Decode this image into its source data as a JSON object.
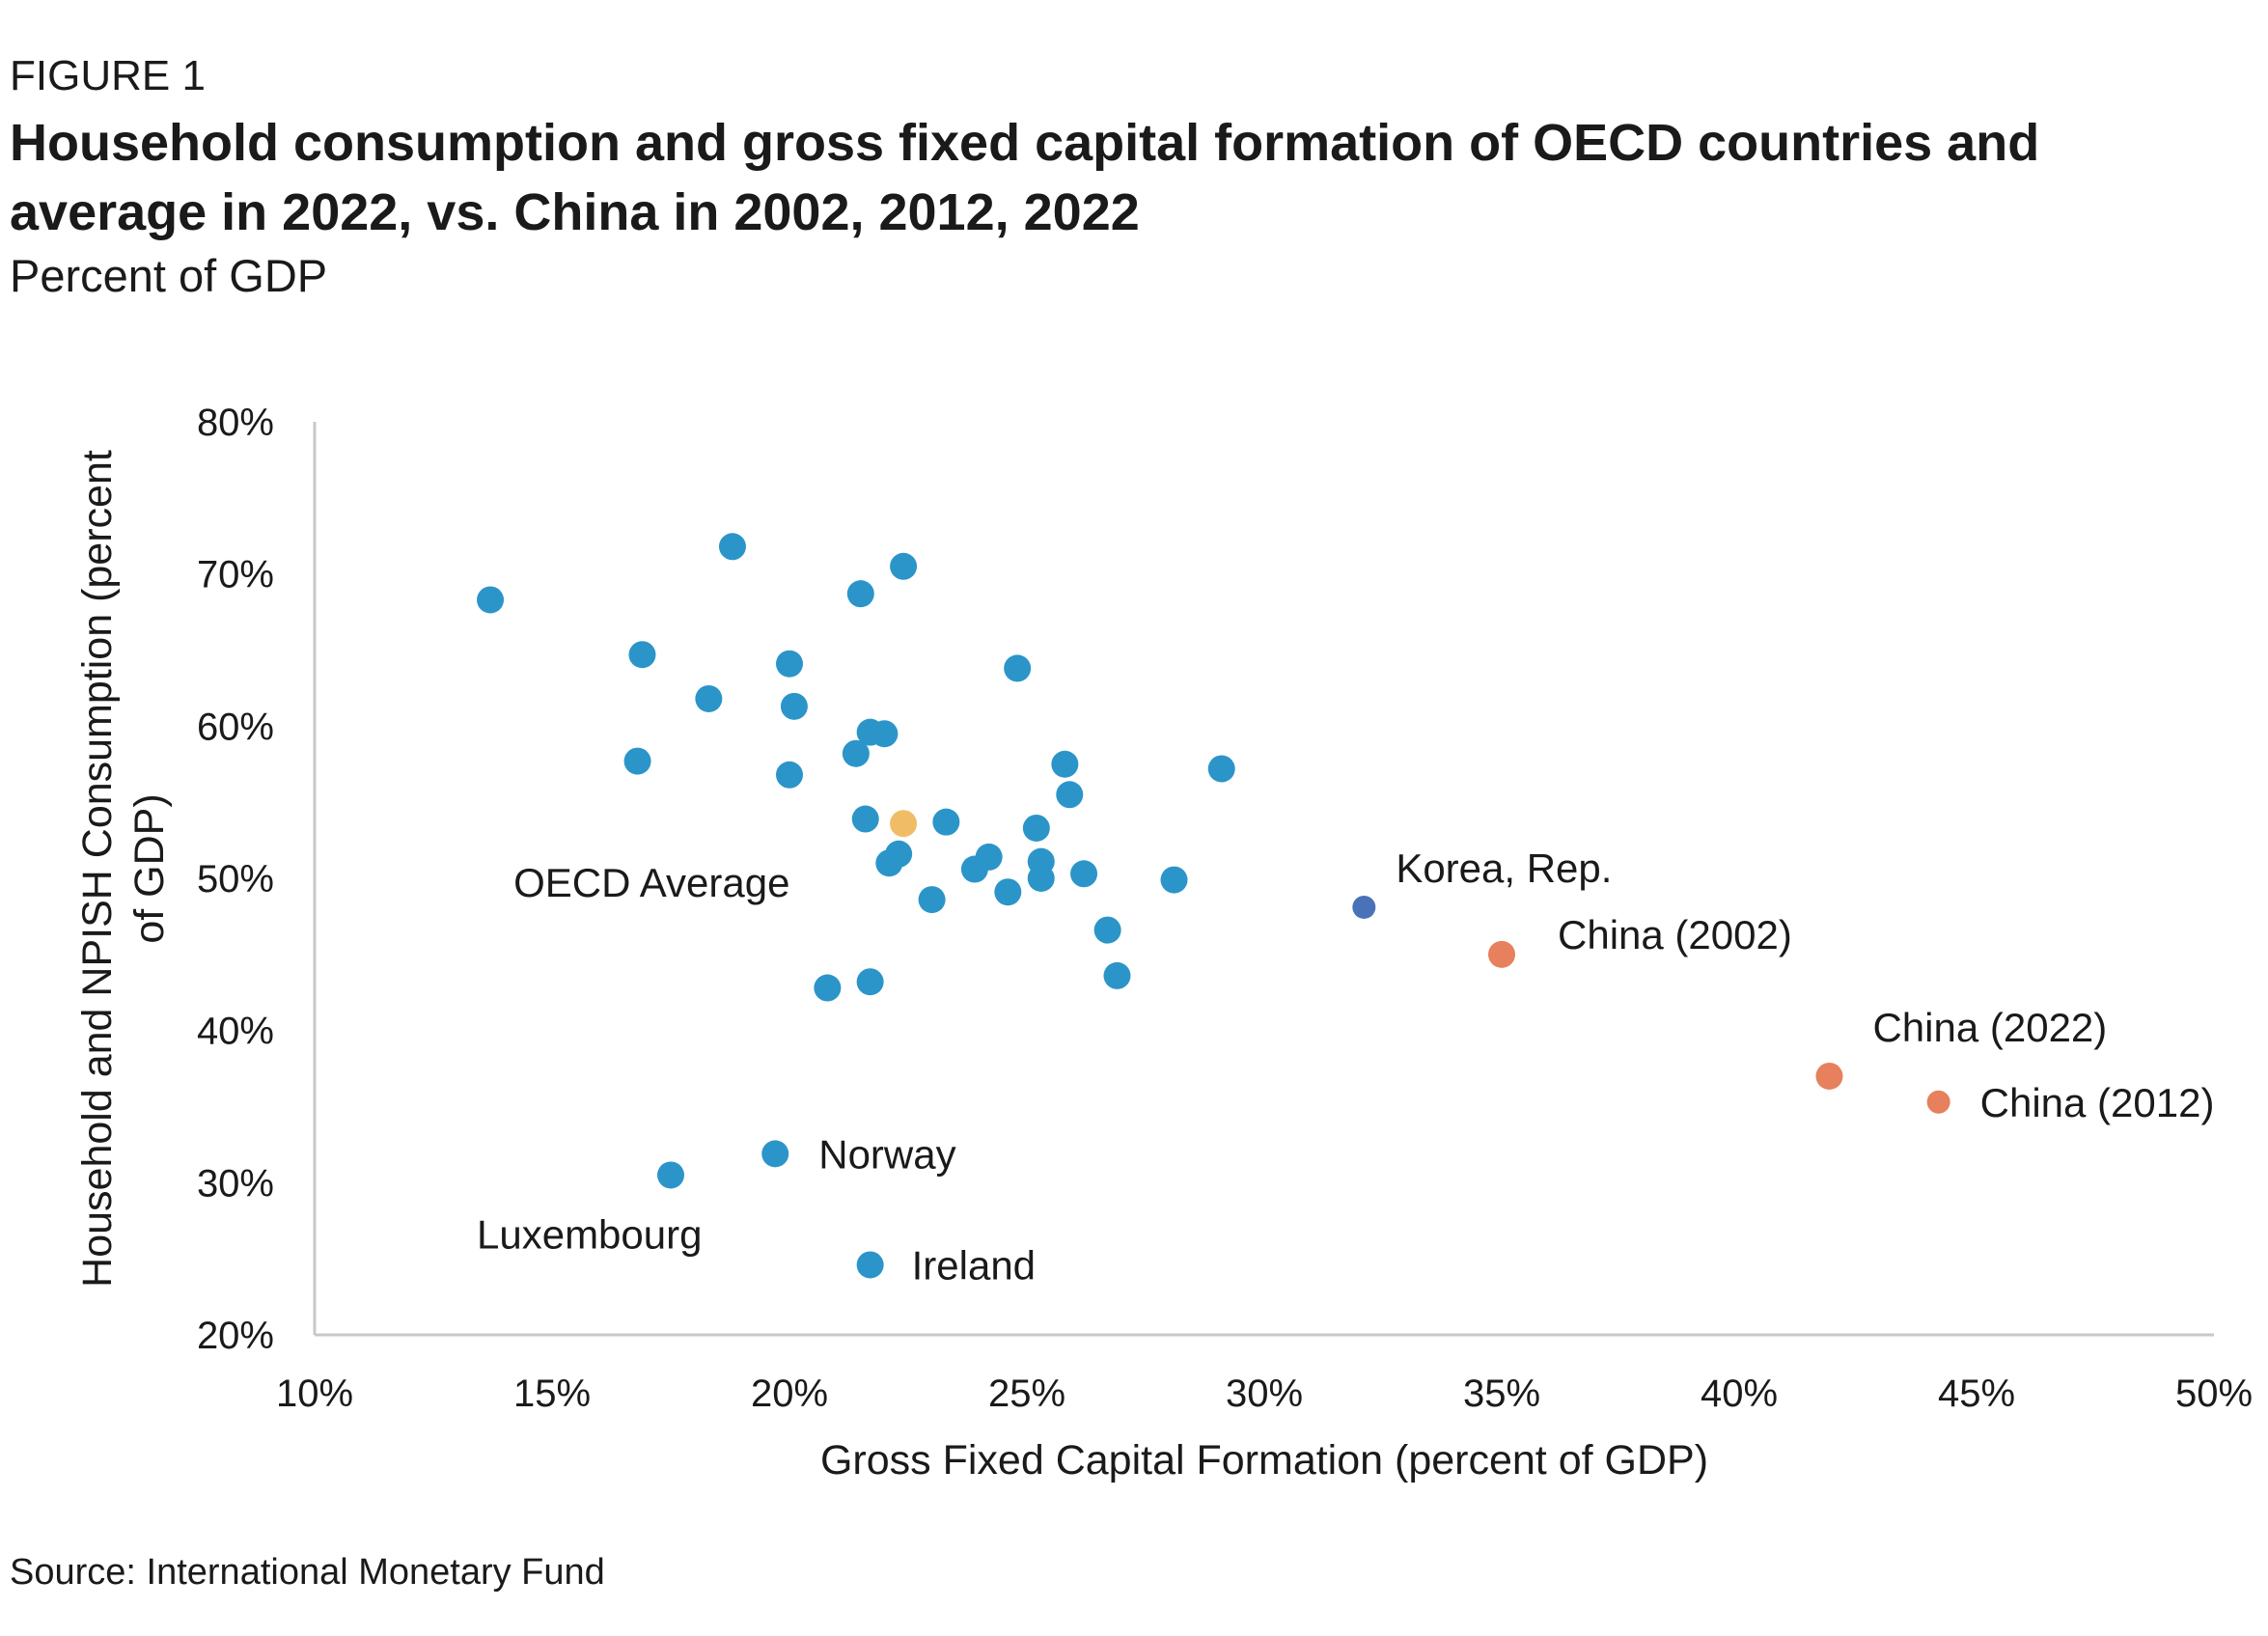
{
  "header": {
    "figure_label": "FIGURE 1",
    "title": "Household consumption and gross fixed capital formation of OECD countries and average in 2022, vs. China in 2002, 2012, 2022",
    "subtitle": "Percent of GDP"
  },
  "footer": {
    "source": "Source: International Monetary Fund"
  },
  "colors": {
    "oecd": "#2b95c9",
    "average": "#f0bd66",
    "korea": "#4a72b8",
    "china": "#e7805c",
    "axis": "#c8c8c8"
  },
  "chart_data": {
    "type": "scatter",
    "xlabel": "Gross Fixed Capital Formation (percent of GDP)",
    "ylabel": "Household and NPISH Consumption (percent of GDP)",
    "xlim": [
      10,
      50
    ],
    "ylim": [
      20,
      80
    ],
    "xticks": [
      "10%",
      "15%",
      "20%",
      "25%",
      "30%",
      "35%",
      "40%",
      "45%",
      "50%"
    ],
    "yticks": [
      "20%",
      "30%",
      "40%",
      "50%",
      "60%",
      "70%",
      "80%"
    ],
    "grid": false,
    "series": [
      {
        "group": "oecd",
        "points": [
          {
            "x": 13.7,
            "y": 68.3
          },
          {
            "x": 18.8,
            "y": 71.8
          },
          {
            "x": 21.5,
            "y": 68.7
          },
          {
            "x": 22.4,
            "y": 70.5
          },
          {
            "x": 16.9,
            "y": 64.7
          },
          {
            "x": 20.0,
            "y": 64.1
          },
          {
            "x": 18.3,
            "y": 61.8
          },
          {
            "x": 20.1,
            "y": 61.3
          },
          {
            "x": 24.8,
            "y": 63.8
          },
          {
            "x": 21.7,
            "y": 59.6
          },
          {
            "x": 22.0,
            "y": 59.5
          },
          {
            "x": 21.4,
            "y": 58.2
          },
          {
            "x": 16.8,
            "y": 57.7
          },
          {
            "x": 20.0,
            "y": 56.8
          },
          {
            "x": 25.8,
            "y": 57.5
          },
          {
            "x": 29.1,
            "y": 57.2
          },
          {
            "x": 25.9,
            "y": 55.5
          },
          {
            "x": 21.6,
            "y": 53.9
          },
          {
            "x": 23.3,
            "y": 53.7
          },
          {
            "x": 25.2,
            "y": 53.3
          },
          {
            "x": 22.3,
            "y": 51.6
          },
          {
            "x": 22.1,
            "y": 51.0
          },
          {
            "x": 24.2,
            "y": 51.4
          },
          {
            "x": 23.9,
            "y": 50.6
          },
          {
            "x": 25.3,
            "y": 51.1
          },
          {
            "x": 25.3,
            "y": 50.0
          },
          {
            "x": 26.2,
            "y": 50.3
          },
          {
            "x": 28.1,
            "y": 49.9
          },
          {
            "x": 23.0,
            "y": 48.6
          },
          {
            "x": 24.6,
            "y": 49.1
          },
          {
            "x": 26.7,
            "y": 46.6
          },
          {
            "x": 20.8,
            "y": 42.8
          },
          {
            "x": 21.7,
            "y": 43.2
          },
          {
            "x": 26.9,
            "y": 43.6
          }
        ]
      },
      {
        "group": "labeled",
        "points": [
          {
            "name": "OECD Average",
            "x": 22.4,
            "y": 53.6,
            "color": "average"
          },
          {
            "name": "Korea, Rep.",
            "x": 32.1,
            "y": 48.1,
            "color": "korea"
          },
          {
            "name": "China (2002)",
            "x": 35.0,
            "y": 45.0,
            "color": "china"
          },
          {
            "name": "China (2022)",
            "x": 41.9,
            "y": 37.0,
            "color": "china"
          },
          {
            "name": "China (2012)",
            "x": 44.2,
            "y": 35.3,
            "color": "china"
          },
          {
            "name": "Norway",
            "x": 19.7,
            "y": 31.9,
            "color": "oecd"
          },
          {
            "name": "Luxembourg",
            "x": 17.5,
            "y": 30.5,
            "color": "oecd"
          },
          {
            "name": "Ireland",
            "x": 21.7,
            "y": 24.6,
            "color": "oecd"
          }
        ]
      }
    ]
  }
}
